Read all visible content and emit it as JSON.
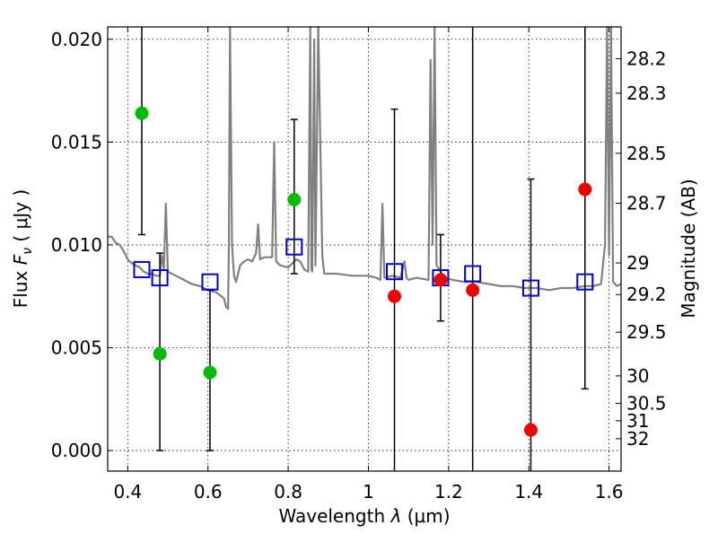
{
  "chart_data": {
    "type": "scatter",
    "xlabel_text": "Wavelength",
    "xlabel_symbol": "λ",
    "xlabel_unit": "(μm)",
    "ylabel_text": "Flux",
    "ylabel_symbol": "F",
    "ylabel_subscript": "ν",
    "ylabel_unit": "( μJy )",
    "ylabel_right": "Magnitude (AB)",
    "xlim": [
      0.35,
      1.63
    ],
    "ylim": [
      -0.001,
      0.0206
    ],
    "grid": true,
    "x_ticks": [
      0.4,
      0.6,
      0.8,
      1.0,
      1.2,
      1.4,
      1.6
    ],
    "x_tick_labels": [
      "0.4",
      "0.6",
      "0.8",
      "1",
      "1.2",
      "1.4",
      "1.6"
    ],
    "y_ticks": [
      0.0,
      0.005,
      0.01,
      0.015,
      0.02
    ],
    "y_tick_labels": [
      "0.000",
      "0.005",
      "0.010",
      "0.015",
      "0.020"
    ],
    "mag_ticks": [
      28.2,
      28.3,
      28.5,
      28.7,
      29,
      29.2,
      29.5,
      30,
      30.5,
      31,
      32
    ],
    "mag_tick_labels": [
      "28.2",
      "28.3",
      "28.5",
      "28.7",
      "29",
      "29.2",
      "29.5",
      "30",
      "30.5",
      "31",
      "32"
    ],
    "model_color": "#808080",
    "model_spectrum": [
      [
        0.35,
        0.0104
      ],
      [
        0.36,
        0.0104
      ],
      [
        0.37,
        0.0101
      ],
      [
        0.38,
        0.01
      ],
      [
        0.39,
        0.0097
      ],
      [
        0.4,
        0.0093
      ],
      [
        0.41,
        0.0091
      ],
      [
        0.42,
        0.009
      ],
      [
        0.43,
        0.0089
      ],
      [
        0.44,
        0.0087
      ],
      [
        0.45,
        0.0086
      ],
      [
        0.46,
        0.0086
      ],
      [
        0.47,
        0.0085
      ],
      [
        0.48,
        0.0085
      ],
      [
        0.485,
        0.0095
      ],
      [
        0.49,
        0.0088
      ],
      [
        0.495,
        0.012
      ],
      [
        0.5,
        0.0087
      ],
      [
        0.52,
        0.0085
      ],
      [
        0.54,
        0.0083
      ],
      [
        0.56,
        0.0081
      ],
      [
        0.58,
        0.008
      ],
      [
        0.6,
        0.0078
      ],
      [
        0.62,
        0.0077
      ],
      [
        0.64,
        0.0074
      ],
      [
        0.645,
        0.007
      ],
      [
        0.65,
        0.0069
      ],
      [
        0.652,
        0.01
      ],
      [
        0.655,
        0.0206
      ],
      [
        0.66,
        0.01
      ],
      [
        0.665,
        0.0085
      ],
      [
        0.67,
        0.0082
      ],
      [
        0.68,
        0.009
      ],
      [
        0.69,
        0.0092
      ],
      [
        0.7,
        0.0093
      ],
      [
        0.71,
        0.0092
      ],
      [
        0.72,
        0.0096
      ],
      [
        0.725,
        0.011
      ],
      [
        0.73,
        0.0093
      ],
      [
        0.74,
        0.0094
      ],
      [
        0.76,
        0.0094
      ],
      [
        0.765,
        0.015
      ],
      [
        0.77,
        0.0092
      ],
      [
        0.78,
        0.009
      ],
      [
        0.8,
        0.0089
      ],
      [
        0.82,
        0.0093
      ],
      [
        0.83,
        0.0092
      ],
      [
        0.84,
        0.0088
      ],
      [
        0.85,
        0.0087
      ],
      [
        0.855,
        0.0206
      ],
      [
        0.858,
        0.0088
      ],
      [
        0.86,
        0.0087
      ],
      [
        0.865,
        0.02
      ],
      [
        0.868,
        0.009
      ],
      [
        0.875,
        0.0206
      ],
      [
        0.885,
        0.0095
      ],
      [
        0.89,
        0.0086
      ],
      [
        0.92,
        0.0086
      ],
      [
        0.96,
        0.0085
      ],
      [
        1.0,
        0.0085
      ],
      [
        1.02,
        0.0084
      ],
      [
        1.03,
        0.0083
      ],
      [
        1.035,
        0.012
      ],
      [
        1.04,
        0.0084
      ],
      [
        1.06,
        0.0085
      ],
      [
        1.08,
        0.0084
      ],
      [
        1.09,
        0.0092
      ],
      [
        1.095,
        0.0084
      ],
      [
        1.1,
        0.0083
      ],
      [
        1.12,
        0.0084
      ],
      [
        1.15,
        0.0083
      ],
      [
        1.155,
        0.019
      ],
      [
        1.16,
        0.01
      ],
      [
        1.165,
        0.0206
      ],
      [
        1.17,
        0.009
      ],
      [
        1.19,
        0.0084
      ],
      [
        1.21,
        0.0083
      ],
      [
        1.24,
        0.0082
      ],
      [
        1.27,
        0.0082
      ],
      [
        1.3,
        0.0081
      ],
      [
        1.33,
        0.008
      ],
      [
        1.36,
        0.008
      ],
      [
        1.39,
        0.0079
      ],
      [
        1.42,
        0.0079
      ],
      [
        1.45,
        0.0078
      ],
      [
        1.48,
        0.0079
      ],
      [
        1.51,
        0.0079
      ],
      [
        1.54,
        0.008
      ],
      [
        1.56,
        0.008
      ],
      [
        1.58,
        0.0081
      ],
      [
        1.59,
        0.01
      ],
      [
        1.595,
        0.0206
      ],
      [
        1.6,
        0.0095
      ],
      [
        1.605,
        0.0206
      ],
      [
        1.61,
        0.0082
      ],
      [
        1.62,
        0.008
      ],
      [
        1.63,
        0.0081
      ]
    ],
    "model_squares": {
      "color": "#0000cc",
      "points": [
        [
          0.435,
          0.0088
        ],
        [
          0.48,
          0.0084
        ],
        [
          0.605,
          0.0082
        ],
        [
          0.815,
          0.0099
        ],
        [
          1.065,
          0.0087
        ],
        [
          1.18,
          0.0084
        ],
        [
          1.26,
          0.0086
        ],
        [
          1.405,
          0.0079
        ],
        [
          1.54,
          0.0082
        ]
      ]
    },
    "green_points": {
      "color": "#00bb00",
      "points": [
        {
          "x": 0.435,
          "y": 0.0164,
          "err_low": 0.0105,
          "err_high": 0.0206
        },
        {
          "x": 0.48,
          "y": 0.0047,
          "err_low": 0.0,
          "err_high": 0.0096
        },
        {
          "x": 0.605,
          "y": 0.0038,
          "err_low": 0.0,
          "err_high": 0.0078
        },
        {
          "x": 0.815,
          "y": 0.0122,
          "err_low": 0.0086,
          "err_high": 0.0161
        }
      ]
    },
    "red_points": {
      "color": "#ee0000",
      "points": [
        {
          "x": 1.065,
          "y": 0.0075,
          "err_low": -0.001,
          "err_high": 0.0166
        },
        {
          "x": 1.18,
          "y": 0.0083,
          "err_low": 0.0063,
          "err_high": 0.0105
        },
        {
          "x": 1.26,
          "y": 0.0078,
          "err_low": -0.001,
          "err_high": 0.0206
        },
        {
          "x": 1.405,
          "y": 0.001,
          "err_low": -0.001,
          "err_high": 0.0132
        },
        {
          "x": 1.54,
          "y": 0.0127,
          "err_low": 0.003,
          "err_high": 0.0206
        }
      ]
    }
  }
}
